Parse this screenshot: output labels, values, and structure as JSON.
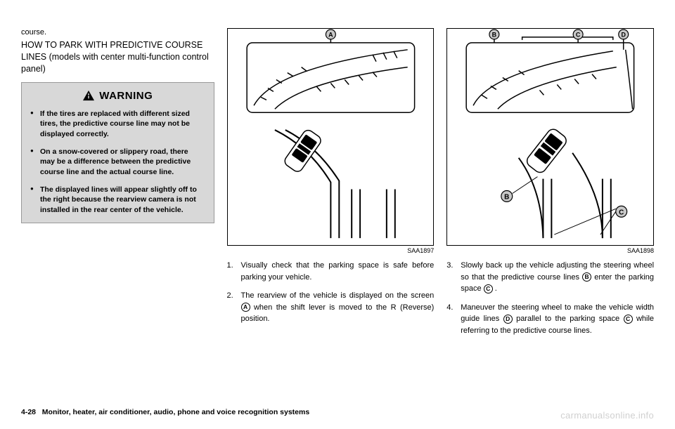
{
  "col1": {
    "lead_word": "course.",
    "subtitle": "HOW TO PARK WITH PREDICTIVE COURSE LINES (models with center multi-function control panel)",
    "warning": {
      "title": "WARNING",
      "items": [
        "If the tires are replaced with different sized tires, the predictive course line may not be displayed correctly.",
        "On a snow-covered or slippery road, there may be a difference between the predictive course line and the actual course line.",
        "The displayed lines will appear slightly off to the right because the rearview camera is not installed in the rear center of the vehicle."
      ]
    }
  },
  "diagram1": {
    "code": "SAA1897",
    "marker_A": "A",
    "screen_bg": "#ffffff",
    "line_color": "#000000"
  },
  "diagram2": {
    "code": "SAA1898",
    "marker_B": "B",
    "marker_C": "C",
    "marker_D": "D",
    "screen_bg": "#ffffff",
    "line_color": "#000000"
  },
  "steps_col2": [
    {
      "n": "1.",
      "text_parts": [
        "Visually check that the parking space is safe before parking your vehicle."
      ]
    },
    {
      "n": "2.",
      "text_parts": [
        "The rearview of the vehicle is displayed on the screen ",
        {
          "circle": "A"
        },
        " when the shift lever is moved to the R (Reverse) position."
      ]
    }
  ],
  "steps_col3": [
    {
      "n": "3.",
      "text_parts": [
        "Slowly back up the vehicle adjusting the steering wheel so that the predictive course lines ",
        {
          "circle": "B"
        },
        " enter the parking space ",
        {
          "circle": "C"
        },
        " ."
      ]
    },
    {
      "n": "4.",
      "text_parts": [
        "Maneuver the steering wheel to make the vehicle width guide lines ",
        {
          "circle": "D"
        },
        " parallel to the parking space ",
        {
          "circle": "C"
        },
        " while referring to the predictive course lines."
      ]
    }
  ],
  "footer": {
    "page": "4-28",
    "section": "Monitor, heater, air conditioner, audio, phone and voice recognition systems"
  },
  "watermark": "carmanualsonline.info",
  "colors": {
    "warning_bg": "#d8d8d8",
    "text": "#000000",
    "watermark": "#d0d0d0"
  }
}
